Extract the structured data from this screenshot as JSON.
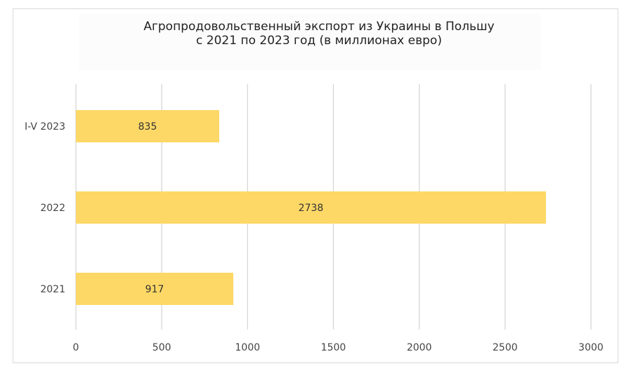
{
  "chart_data": {
    "type": "bar",
    "orientation": "horizontal",
    "title_lines": [
      "Агропродовольственный экспорт из Украины в Польшу",
      "с 2021 по 2023 год (в миллионах евро)"
    ],
    "categories": [
      "I-V 2023",
      "2022",
      "2021"
    ],
    "values": [
      835,
      2738,
      917
    ],
    "xlim": [
      0,
      3000
    ],
    "x_ticks": [
      "0",
      "500",
      "1000",
      "1500",
      "2000",
      "2500",
      "3000"
    ],
    "grid": "vertical",
    "bar_color": "#FDD866",
    "grid_color": "#d9d9d9"
  }
}
